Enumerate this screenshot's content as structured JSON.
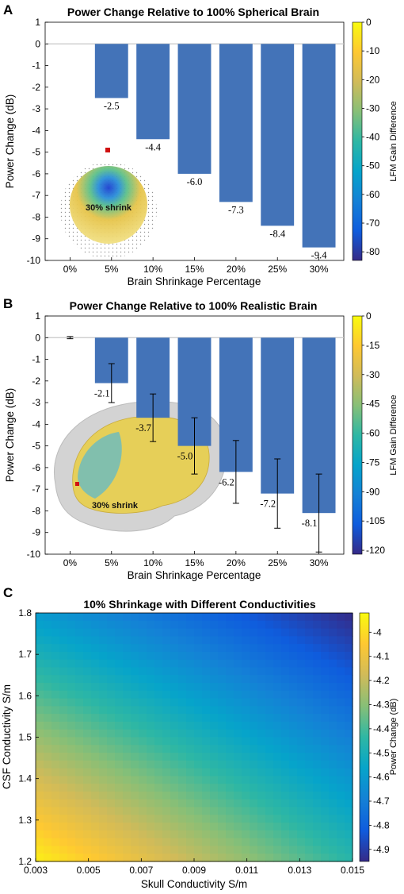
{
  "panels": {
    "a": {
      "letter": "A",
      "inset_text": "30% shrink"
    },
    "b": {
      "letter": "B",
      "inset_text": "30% shrink"
    },
    "c": {
      "letter": "C"
    }
  },
  "colors": {
    "bar": "#4373b8",
    "zero_line": "#c8c8c8",
    "parula": [
      "#352a87",
      "#0f5cdd",
      "#1481d6",
      "#06a4ca",
      "#2eb7a4",
      "#87bf77",
      "#d1bb59",
      "#fec832",
      "#f9fb0e"
    ]
  },
  "chart_data": [
    {
      "type": "bar",
      "title": "Power Change Relative to 100% Spherical Brain",
      "xlabel": "Brain Shrinkage Percentage",
      "ylabel": "Power Change (dB)",
      "categories": [
        "0%",
        "5%",
        "10%",
        "15%",
        "20%",
        "25%",
        "30%"
      ],
      "values": [
        0,
        -2.5,
        -4.4,
        -6.0,
        -7.3,
        -8.4,
        -9.4
      ],
      "data_labels": [
        "",
        "-2.5",
        "-4.4",
        "-6.0",
        "-7.3",
        "-8.4",
        "-9.4"
      ],
      "ylim": [
        -10,
        1
      ],
      "yticks": [
        1,
        0,
        -1,
        -2,
        -3,
        -4,
        -5,
        -6,
        -7,
        -8,
        -9,
        -10
      ],
      "colorbar": {
        "label": "LFM Gain Difference",
        "range": [
          -83,
          0
        ],
        "ticks": [
          0,
          -10,
          -20,
          -30,
          -40,
          -50,
          -60,
          -70,
          -80
        ]
      }
    },
    {
      "type": "bar",
      "title": "Power Change Relative to 100% Realistic Brain",
      "xlabel": "Brain Shrinkage Percentage",
      "ylabel": "Power Change (dB)",
      "categories": [
        "0%",
        "5%",
        "10%",
        "15%",
        "20%",
        "25%",
        "30%"
      ],
      "values": [
        0,
        -2.1,
        -3.7,
        -5.0,
        -6.2,
        -7.2,
        -8.1
      ],
      "data_labels": [
        "",
        "-2.1",
        "-3.7",
        "-5.0",
        "-6.2",
        "-7.2",
        "-8.1"
      ],
      "errors": [
        0.05,
        0.9,
        1.1,
        1.3,
        1.45,
        1.6,
        1.8
      ],
      "ylim": [
        -10,
        1
      ],
      "yticks": [
        1,
        0,
        -1,
        -2,
        -3,
        -4,
        -5,
        -6,
        -7,
        -8,
        -9,
        -10
      ],
      "colorbar": {
        "label": "LFM Gain Difference",
        "range": [
          -122,
          0
        ],
        "ticks": [
          0,
          -15,
          -30,
          -45,
          -60,
          -75,
          -90,
          -105,
          -120
        ]
      }
    },
    {
      "type": "heatmap",
      "title": "10% Shrinkage with Different Conductivities",
      "xlabel": "Skull Conductivity S/m",
      "ylabel": "CSF Conductivity S/m",
      "xlim": [
        0.003,
        0.015
      ],
      "ylim": [
        1.2,
        1.8
      ],
      "xticks": [
        "0.003",
        "0.005",
        "0.007",
        "0.009",
        "0.011",
        "0.013",
        "0.015"
      ],
      "yticks": [
        "1.8",
        "1.7",
        "1.6",
        "1.5",
        "1.4",
        "1.3",
        "1.2"
      ],
      "corner_values": {
        "x_min_y_min": -3.95,
        "x_max_y_min": -4.45,
        "x_min_y_max": -4.6,
        "x_max_y_max": -4.95
      },
      "colorbar": {
        "label": "Power Change (dB)",
        "range": [
          -4.95,
          -3.92
        ],
        "ticks": [
          "-4",
          "-4.1",
          "-4.2",
          "-4.3",
          "-4.4",
          "-4.5",
          "-4.6",
          "-4.7",
          "-4.8",
          "-4.9"
        ]
      }
    }
  ]
}
